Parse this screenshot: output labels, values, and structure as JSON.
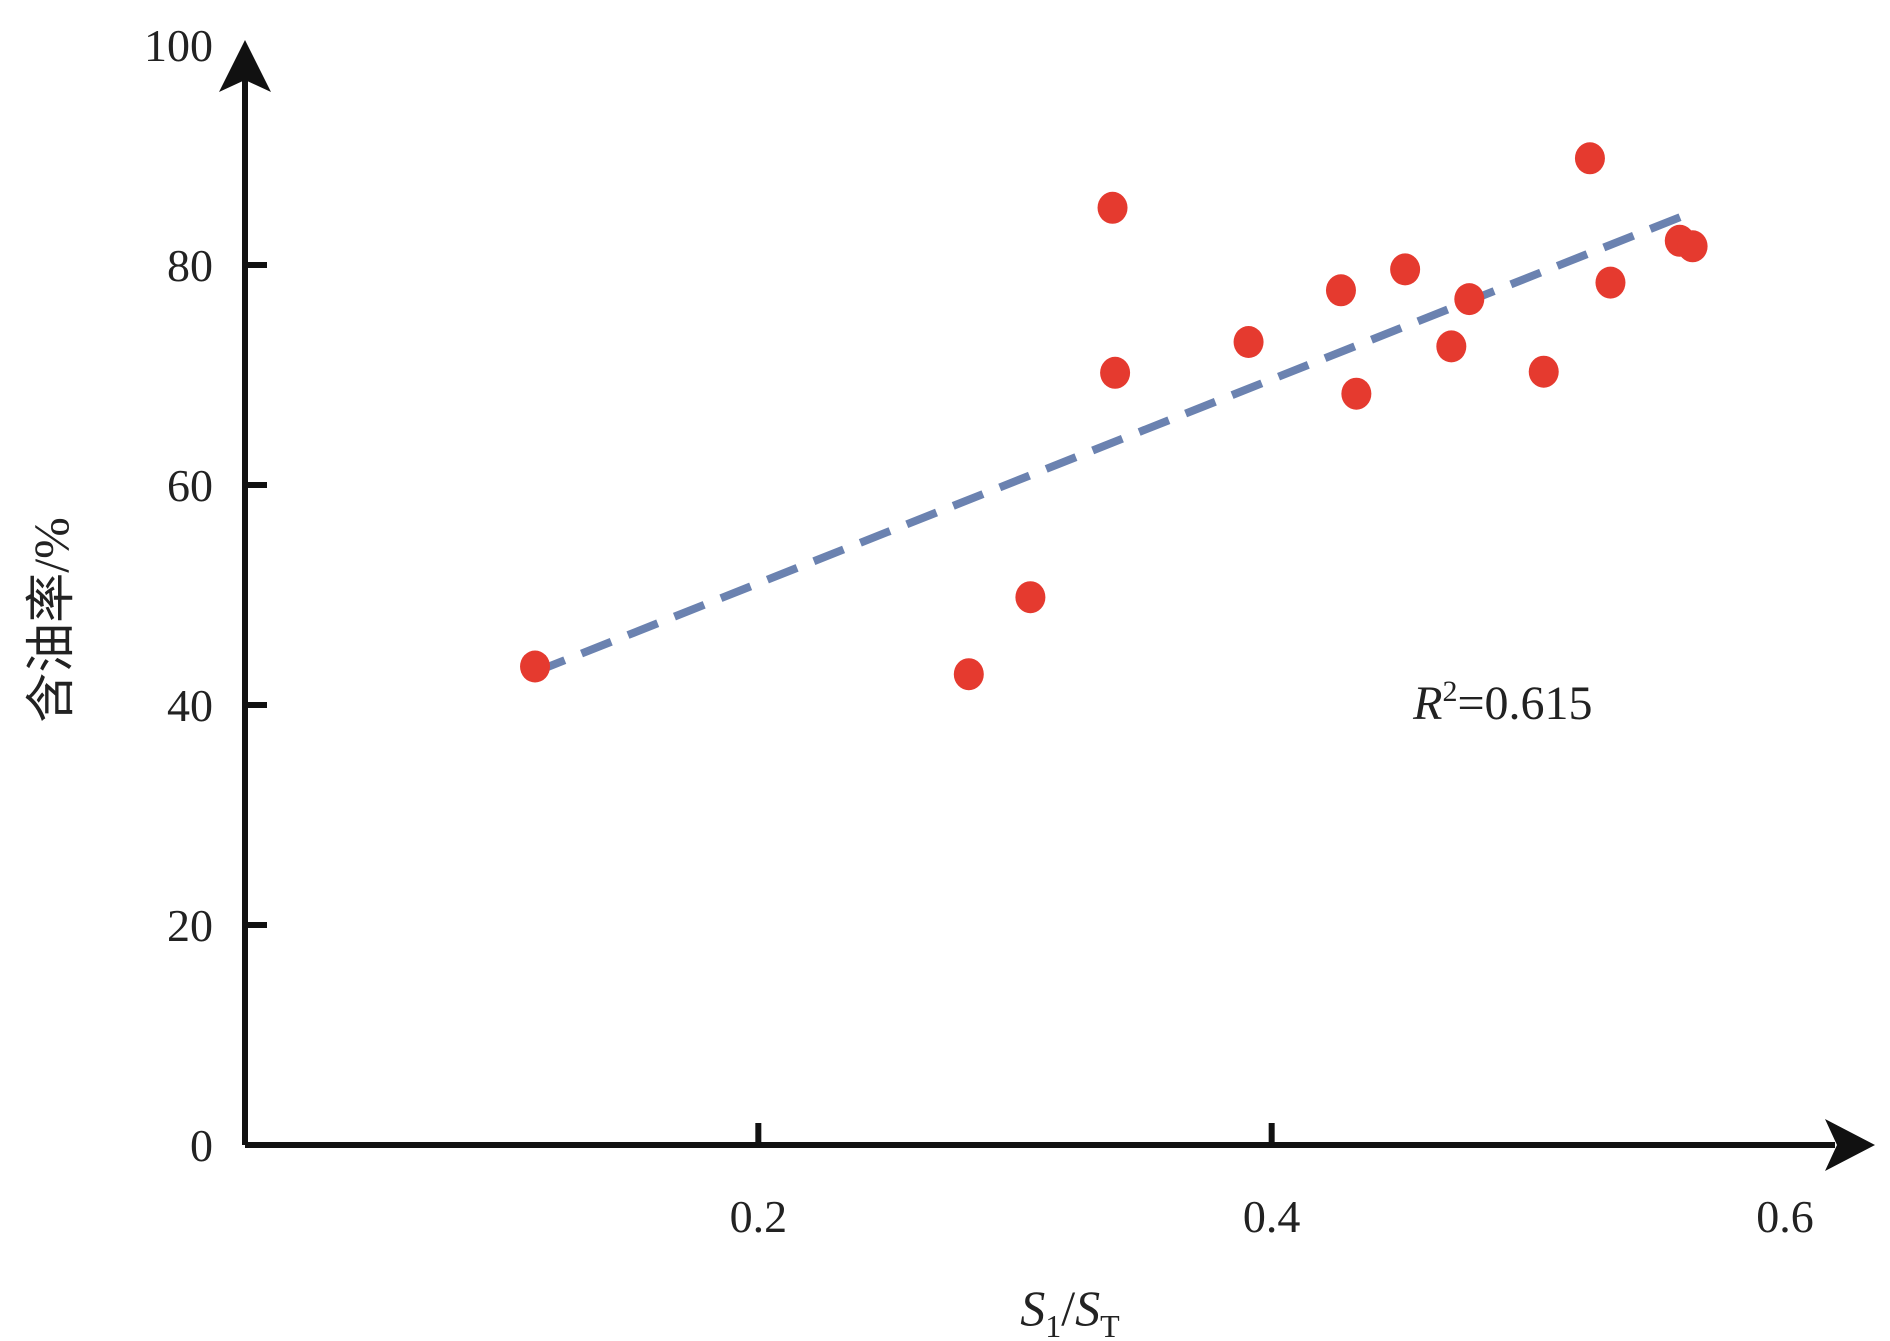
{
  "chart_data": {
    "type": "scatter",
    "title": "",
    "xlabel": {
      "main": "S",
      "sub1": "1",
      "sep": "/",
      "main2": "S",
      "sub2": "T"
    },
    "ylabel": "含油率/%",
    "xlim": [
      0.0,
      0.6
    ],
    "ylim": [
      0,
      100
    ],
    "xticks": [
      {
        "value": 0.2,
        "label": "0.2"
      },
      {
        "value": 0.4,
        "label": "0.4"
      },
      {
        "value": 0.6,
        "label": "0.6"
      }
    ],
    "yticks": [
      {
        "value": 0,
        "label": "0"
      },
      {
        "value": 20,
        "label": "20"
      },
      {
        "value": 40,
        "label": "40"
      },
      {
        "value": 60,
        "label": "60"
      },
      {
        "value": 80,
        "label": "80"
      },
      {
        "value": 100,
        "label": "100"
      }
    ],
    "grid": false,
    "legend": "none",
    "point_color": "#e53a2f",
    "trend_color": "#6b82b0",
    "points": [
      {
        "x": 0.113,
        "y": 43.5
      },
      {
        "x": 0.282,
        "y": 42.8
      },
      {
        "x": 0.306,
        "y": 49.8
      },
      {
        "x": 0.338,
        "y": 85.2
      },
      {
        "x": 0.339,
        "y": 70.2
      },
      {
        "x": 0.391,
        "y": 73.0
      },
      {
        "x": 0.427,
        "y": 77.7
      },
      {
        "x": 0.433,
        "y": 68.3
      },
      {
        "x": 0.452,
        "y": 79.6
      },
      {
        "x": 0.47,
        "y": 72.6
      },
      {
        "x": 0.477,
        "y": 76.9
      },
      {
        "x": 0.506,
        "y": 70.3
      },
      {
        "x": 0.524,
        "y": 89.7
      },
      {
        "x": 0.532,
        "y": 78.4
      },
      {
        "x": 0.559,
        "y": 82.2
      },
      {
        "x": 0.564,
        "y": 81.7
      }
    ],
    "trendline": {
      "x1": 0.113,
      "y1": 43.0,
      "x2": 0.564,
      "y2": 84.8
    },
    "annotation": {
      "main": "R",
      "sup": "2",
      "rest": "=0.615",
      "x": 0.452,
      "y": 40
    }
  }
}
